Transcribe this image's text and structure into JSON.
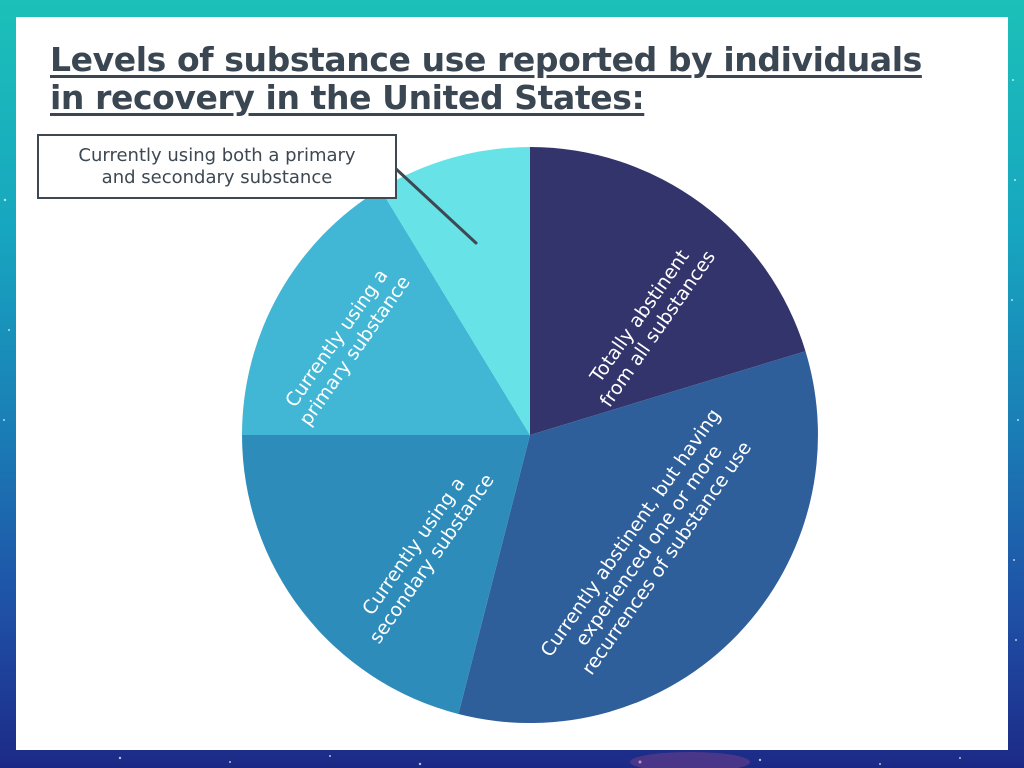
{
  "slide": {
    "title_lines": [
      "Levels of substance use reported by individuals",
      "in recovery in the United States:"
    ],
    "background_colors": [
      "#1cc0b8",
      "#1c2a86"
    ]
  },
  "callout": {
    "lines": [
      "Currently using both a primary",
      "and secondary substance"
    ],
    "border_color": "#3d4852"
  },
  "chart_data": {
    "type": "pie",
    "title": "Levels of substance use reported by individuals in recovery in the United States:",
    "start_angle_deg": 0,
    "direction": "clockwise",
    "categories": [
      "Totally abstinent from all substances",
      "Currently abstinent, but having experienced one or more recurrences of substance use",
      "Currently using a secondary substance",
      "Currently using a primary substance",
      "Currently using both a primary and secondary substance"
    ],
    "values": [
      20.3,
      33.7,
      21.0,
      16.3,
      8.7
    ],
    "colors": [
      "#32346b",
      "#2f5f9a",
      "#2e8cbb",
      "#42b6d5",
      "#67e3e8"
    ],
    "slice_label_lines": [
      [
        "Totally abstinent",
        "from all substances"
      ],
      [
        "Currently abstinent, but having",
        "experienced one or more",
        "recurrences of substance use"
      ],
      [
        "Currently using a",
        "secondary substance"
      ],
      [
        "Currently using a",
        "primary substance"
      ],
      []
    ],
    "legend": "none",
    "data_labels": "category names inside slices; smallest slice labeled via callout"
  }
}
